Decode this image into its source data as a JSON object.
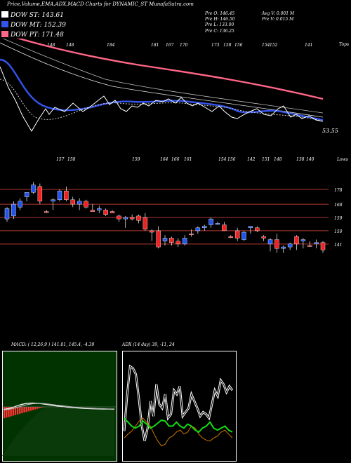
{
  "header": {
    "title": "Price,Volume,EMA,ADX,MACD Charts for DYNAMIC_ST MunafaSutra.com"
  },
  "legend": [
    {
      "label": "DOW ST: 143.61",
      "color": "#ffffff"
    },
    {
      "label": "DOW MT: 152.39",
      "color": "#3355ee"
    },
    {
      "label": "DOW PT: 171.48",
      "color": "#ff6688"
    }
  ],
  "stats": {
    "col1": [
      "Pre  O: 146.45",
      "Pre  H: 146.50",
      "Pre  L: 133.00",
      "Pre  C: 136.25"
    ],
    "col2": [
      "Avg V: 0.001 M",
      "Pre  V: 0.015 M"
    ]
  },
  "top_panel": {
    "right_tag": "Tops",
    "last_value": "53.55",
    "top_labels": [
      "148",
      "148",
      "184",
      "181",
      "167",
      "170",
      "173",
      "158",
      "156",
      "154",
      "152",
      "141"
    ],
    "bottom_tag": "Lows",
    "low_labels": [
      "157",
      "158",
      "159",
      "164",
      "166",
      "161",
      "154",
      "156",
      "142",
      "151",
      "148",
      "138",
      "140"
    ]
  },
  "chart_data": [
    {
      "type": "candlestick",
      "title": "Price",
      "price_levels": [
        "178",
        "168",
        "159",
        "150",
        "141"
      ],
      "price_levels_values": [
        178,
        168,
        159,
        150,
        141
      ],
      "ylim": [
        130,
        188
      ],
      "candles": [
        {
          "o": 158,
          "h": 166,
          "l": 156,
          "c": 165,
          "up": true
        },
        {
          "o": 160,
          "h": 170,
          "l": 158,
          "c": 168,
          "up": true
        },
        {
          "o": 166,
          "h": 172,
          "l": 164,
          "c": 170,
          "up": true
        },
        {
          "o": 173,
          "h": 176,
          "l": 170,
          "c": 176,
          "up": true
        },
        {
          "o": 176,
          "h": 183,
          "l": 175,
          "c": 181,
          "up": true
        },
        {
          "o": 180,
          "h": 182,
          "l": 168,
          "c": 170,
          "up": false
        },
        {
          "o": 163,
          "h": 164,
          "l": 162,
          "c": 163,
          "up": false
        },
        {
          "o": 170,
          "h": 172,
          "l": 164,
          "c": 171,
          "up": true
        },
        {
          "o": 171,
          "h": 178,
          "l": 170,
          "c": 177,
          "up": true
        },
        {
          "o": 177,
          "h": 180,
          "l": 170,
          "c": 171,
          "up": false
        },
        {
          "o": 171,
          "h": 173,
          "l": 166,
          "c": 168,
          "up": false
        },
        {
          "o": 168,
          "h": 172,
          "l": 164,
          "c": 170,
          "up": true
        },
        {
          "o": 170,
          "h": 171,
          "l": 165,
          "c": 166,
          "up": false
        },
        {
          "o": 164,
          "h": 168,
          "l": 163,
          "c": 163,
          "up": false
        },
        {
          "o": 164,
          "h": 167,
          "l": 162,
          "c": 165,
          "up": true
        },
        {
          "o": 164,
          "h": 165,
          "l": 160,
          "c": 161,
          "up": false
        },
        {
          "o": 163,
          "h": 164,
          "l": 162,
          "c": 162,
          "up": false
        },
        {
          "o": 160,
          "h": 161,
          "l": 156,
          "c": 158,
          "up": false
        },
        {
          "o": 158,
          "h": 160,
          "l": 152,
          "c": 159,
          "up": true
        },
        {
          "o": 159,
          "h": 161,
          "l": 157,
          "c": 158,
          "up": false
        },
        {
          "o": 160,
          "h": 161,
          "l": 155,
          "c": 157,
          "up": false
        },
        {
          "o": 159,
          "h": 162,
          "l": 150,
          "c": 151,
          "up": false
        },
        {
          "o": 150,
          "h": 151,
          "l": 143,
          "c": 149,
          "up": false
        },
        {
          "o": 150,
          "h": 153,
          "l": 138,
          "c": 139,
          "up": false
        },
        {
          "o": 143,
          "h": 147,
          "l": 140,
          "c": 145,
          "up": true
        },
        {
          "o": 145,
          "h": 146,
          "l": 140,
          "c": 142,
          "up": false
        },
        {
          "o": 143,
          "h": 145,
          "l": 139,
          "c": 141,
          "up": false
        },
        {
          "o": 141,
          "h": 147,
          "l": 140,
          "c": 145,
          "up": true
        },
        {
          "o": 148,
          "h": 151,
          "l": 146,
          "c": 148,
          "up": false
        },
        {
          "o": 150,
          "h": 153,
          "l": 148,
          "c": 152,
          "up": true
        },
        {
          "o": 152,
          "h": 154,
          "l": 150,
          "c": 153,
          "up": true
        },
        {
          "o": 154,
          "h": 159,
          "l": 152,
          "c": 158,
          "up": true
        },
        {
          "o": 155,
          "h": 156,
          "l": 154,
          "c": 155,
          "up": true
        },
        {
          "o": 154,
          "h": 156,
          "l": 150,
          "c": 150,
          "up": false
        },
        {
          "o": 146,
          "h": 147,
          "l": 145,
          "c": 146,
          "up": false
        },
        {
          "o": 150,
          "h": 152,
          "l": 143,
          "c": 145,
          "up": false
        },
        {
          "o": 144,
          "h": 150,
          "l": 143,
          "c": 149,
          "up": true
        },
        {
          "o": 153,
          "h": 153,
          "l": 148,
          "c": 152,
          "up": true
        },
        {
          "o": 152,
          "h": 153,
          "l": 149,
          "c": 150,
          "up": false
        },
        {
          "o": 146,
          "h": 147,
          "l": 143,
          "c": 145,
          "up": false
        },
        {
          "o": 141,
          "h": 145,
          "l": 136,
          "c": 144,
          "up": true
        },
        {
          "o": 144,
          "h": 148,
          "l": 135,
          "c": 138,
          "up": false
        },
        {
          "o": 138,
          "h": 140,
          "l": 135,
          "c": 139,
          "up": true
        },
        {
          "o": 139,
          "h": 142,
          "l": 137,
          "c": 141,
          "up": true
        },
        {
          "o": 146,
          "h": 147,
          "l": 137,
          "c": 141,
          "up": false
        },
        {
          "o": 143,
          "h": 145,
          "l": 138,
          "c": 144,
          "up": true
        },
        {
          "o": 140,
          "h": 143,
          "l": 139,
          "c": 140,
          "up": false
        },
        {
          "o": 141,
          "h": 144,
          "l": 138,
          "c": 142,
          "up": true
        },
        {
          "o": 142,
          "h": 143,
          "l": 135,
          "c": 137,
          "up": false
        }
      ]
    },
    {
      "type": "line",
      "title": "MACD",
      "header": "MACD:                 ( 12,26,9 ) 141.01,  145.4,  -4.39",
      "series": [
        {
          "values": [
            0.2,
            0.32,
            0.55,
            0.78,
            0.92,
            0.96,
            0.92,
            0.82,
            0.72,
            0.62,
            0.54,
            0.46,
            0.4,
            0.35,
            0.31,
            0.28,
            0.26,
            0.24,
            0.23,
            0.22
          ]
        },
        {
          "values": [
            0.15,
            0.22,
            0.38,
            0.58,
            0.76,
            0.88,
            0.92,
            0.88,
            0.8,
            0.71,
            0.63,
            0.55,
            0.48,
            0.42,
            0.37,
            0.33,
            0.3,
            0.28,
            0.26,
            0.25
          ]
        }
      ],
      "histogram": [
        -0.9,
        -0.85,
        -0.8,
        -0.75,
        -0.7,
        -0.65,
        -0.6,
        -0.55,
        -0.5,
        -0.45,
        -0.4,
        -0.35,
        -0.3,
        -0.25,
        -0.2,
        -0.15,
        -0.1,
        -0.05,
        -0.03
      ]
    },
    {
      "type": "line",
      "title": "ADX",
      "header": "ADX             (14  day) 39,  -11,  24",
      "series": [
        {
          "values": [
            0.25,
            0.62,
            0.9,
            0.88,
            0.82,
            0.58,
            0.3,
            0.15,
            0.28,
            0.55,
            0.4,
            0.72,
            0.52,
            0.48,
            0.62,
            0.38,
            0.42,
            0.66,
            0.62,
            0.7,
            0.4,
            0.44,
            0.48,
            0.62,
            0.55,
            0.48,
            0.4,
            0.44,
            0.42,
            0.38,
            0.52,
            0.66,
            0.6,
            0.76,
            0.72,
            0.64,
            0.7,
            0.66
          ]
        },
        {
          "values": [
            0.18,
            0.22,
            0.25,
            0.3,
            0.35,
            0.38,
            0.34,
            0.3,
            0.22,
            0.15,
            0.1,
            0.12,
            0.18,
            0.2,
            0.24,
            0.26,
            0.22,
            0.24,
            0.3,
            0.28,
            0.22,
            0.18,
            0.16,
            0.15,
            0.18,
            0.2,
            0.24,
            0.26,
            0.22,
            0.18
          ]
        },
        {
          "values": [
            0.38,
            0.34,
            0.3,
            0.28,
            0.3,
            0.35,
            0.32,
            0.28,
            0.3,
            0.33,
            0.36,
            0.35,
            0.3,
            0.3,
            0.34,
            0.3,
            0.28,
            0.32,
            0.3,
            0.26,
            0.24,
            0.28,
            0.3,
            0.34,
            0.28,
            0.26,
            0.28,
            0.3,
            0.26,
            0.24
          ]
        }
      ]
    }
  ],
  "colors": {
    "price_level_line": "#b0392f",
    "candle_up": "#2255ee",
    "candle_down": "#ee2222",
    "ema_pink": "#ff6688",
    "ema_blue": "#3355ee",
    "macd_bg": "#003300",
    "macd_fill": "#0a5a0a",
    "adx_line": "#ffffff",
    "adx_plus": "#cc7700",
    "adx_minus": "#11dd11",
    "panel_border": "#ffffff"
  }
}
